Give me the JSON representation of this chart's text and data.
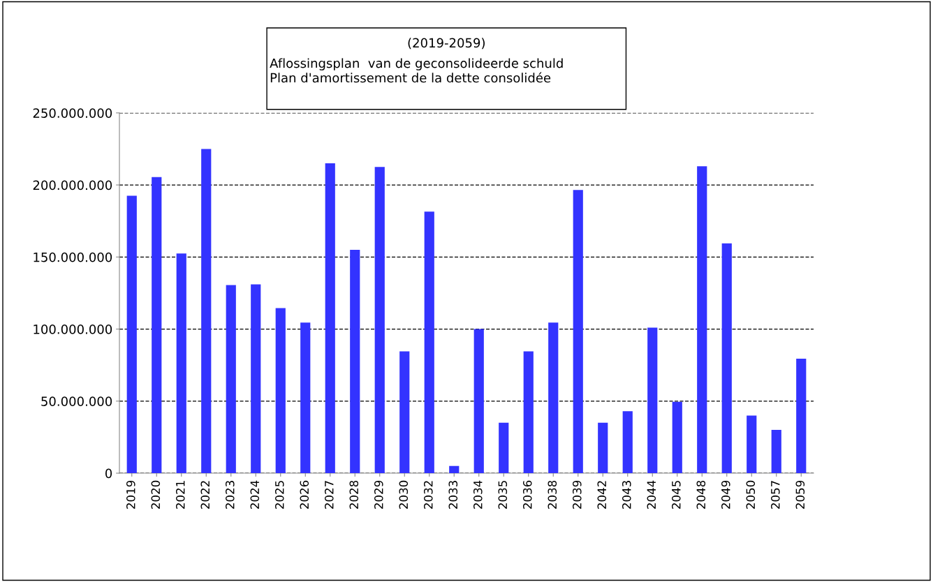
{
  "chart_data": {
    "type": "bar",
    "title": "(2019-2059)",
    "subtitle": "Aflossingsplan  van de geconsolideerde schuld\nPlan d'amortissement de la dette consolidée",
    "categories": [
      "2019",
      "2020",
      "2021",
      "2022",
      "2023",
      "2024",
      "2025",
      "2026",
      "2027",
      "2028",
      "2029",
      "2030",
      "2032",
      "2033",
      "2034",
      "2035",
      "2036",
      "2038",
      "2039",
      "2042",
      "2043",
      "2044",
      "2045",
      "2048",
      "2049",
      "2050",
      "2057",
      "2059"
    ],
    "values": [
      192500000,
      205500000,
      152500000,
      225000000,
      130500000,
      131000000,
      114500000,
      104500000,
      215000000,
      155000000,
      212500000,
      84500000,
      181500000,
      5000000,
      100000000,
      35000000,
      84500000,
      104500000,
      196500000,
      35000000,
      43000000,
      101000000,
      49500000,
      213000000,
      159500000,
      40000000,
      30000000,
      79500000
    ],
    "color": "#3333ff",
    "ylim": [
      0,
      250000000
    ],
    "yticks": [
      {
        "value": 0,
        "label": "0"
      },
      {
        "value": 50000000,
        "label": "50.000.000"
      },
      {
        "value": 100000000,
        "label": "100.000.000"
      },
      {
        "value": 150000000,
        "label": "150.000.000"
      },
      {
        "value": 200000000,
        "label": "200.000.000"
      },
      {
        "value": 250000000,
        "label": "250.000.000"
      }
    ],
    "grid": "y",
    "legend": false
  }
}
